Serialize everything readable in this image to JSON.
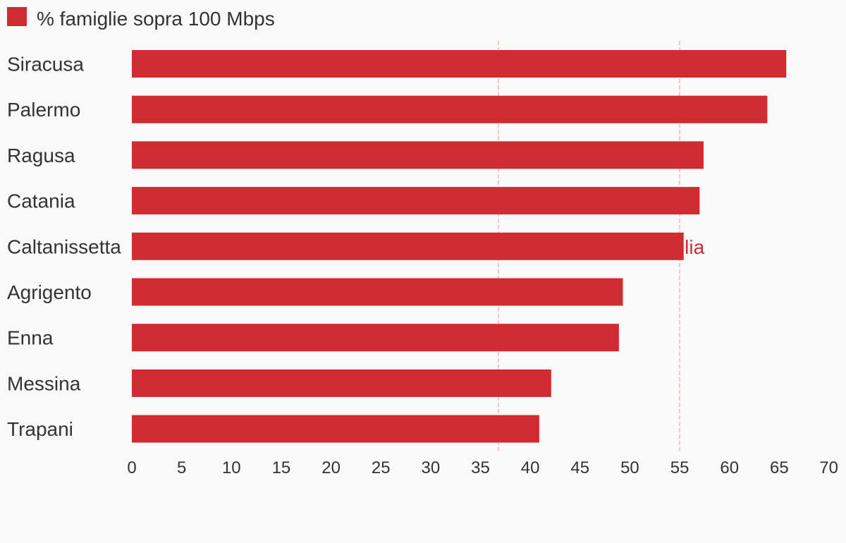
{
  "chart_data": {
    "type": "bar",
    "orientation": "horizontal",
    "categories": [
      "Siracusa",
      "Palermo",
      "Ragusa",
      "Catania",
      "Caltanissetta",
      "Agrigento",
      "Enna",
      "Messina",
      "Trapani"
    ],
    "series": [
      {
        "name": "% famiglie sopra 100 Mbps",
        "color": "#cf2b31",
        "values": [
          65.7,
          63.8,
          57.4,
          57.0,
          55.4,
          49.3,
          48.9,
          42.1,
          40.9
        ]
      }
    ],
    "xlim": [
      0,
      70
    ],
    "xticks": [
      0,
      5,
      10,
      15,
      20,
      25,
      30,
      35,
      40,
      45,
      50,
      55,
      60,
      65,
      70
    ],
    "xlabel": "",
    "ylabel": "",
    "legend_position": "top-left",
    "grid": false,
    "reference_lines": [
      {
        "value": 36.8,
        "label": "",
        "color": "#f4b8bf"
      },
      {
        "value": 55,
        "label": "Sicilia",
        "color": "#f4b8bf",
        "label_color": "#cf2b31"
      }
    ]
  }
}
